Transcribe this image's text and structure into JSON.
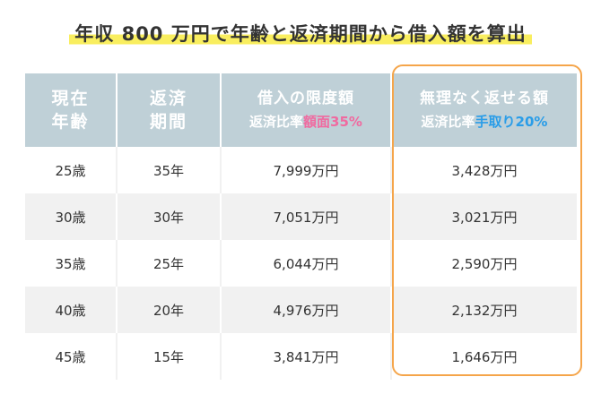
{
  "title": "年収 800 万円で年齢と返済期間から借入額を算出",
  "header": {
    "col1_line1": "現在",
    "col1_line2": "年齢",
    "col2_line1": "返済",
    "col2_line2": "期間",
    "col3_title": "借入の限度額",
    "col3_sub_label": "返済比率",
    "col3_sub_highlight": "額面35%",
    "col4_title": "無理なく返せる額",
    "col4_sub_label": "返済比率",
    "col4_sub_highlight": "手取り20%"
  },
  "rows": [
    {
      "age": "25歳",
      "term": "35年",
      "limit": "7,999万円",
      "comfortable": "3,428万円"
    },
    {
      "age": "30歳",
      "term": "30年",
      "limit": "7,051万円",
      "comfortable": "3,021万円"
    },
    {
      "age": "35歳",
      "term": "25年",
      "limit": "6,044万円",
      "comfortable": "2,590万円"
    },
    {
      "age": "40歳",
      "term": "20年",
      "limit": "4,976万円",
      "comfortable": "2,132万円"
    },
    {
      "age": "45歳",
      "term": "15年",
      "limit": "3,841万円",
      "comfortable": "1,646万円"
    }
  ],
  "colors": {
    "header_bg": "#bfd0d7",
    "title_highlight": "#f9ee5f",
    "pink_accent": "#f06aa0",
    "blue_accent": "#2a9de8",
    "frame_orange": "#f5a54a",
    "stripe": "#f1f1f1"
  }
}
